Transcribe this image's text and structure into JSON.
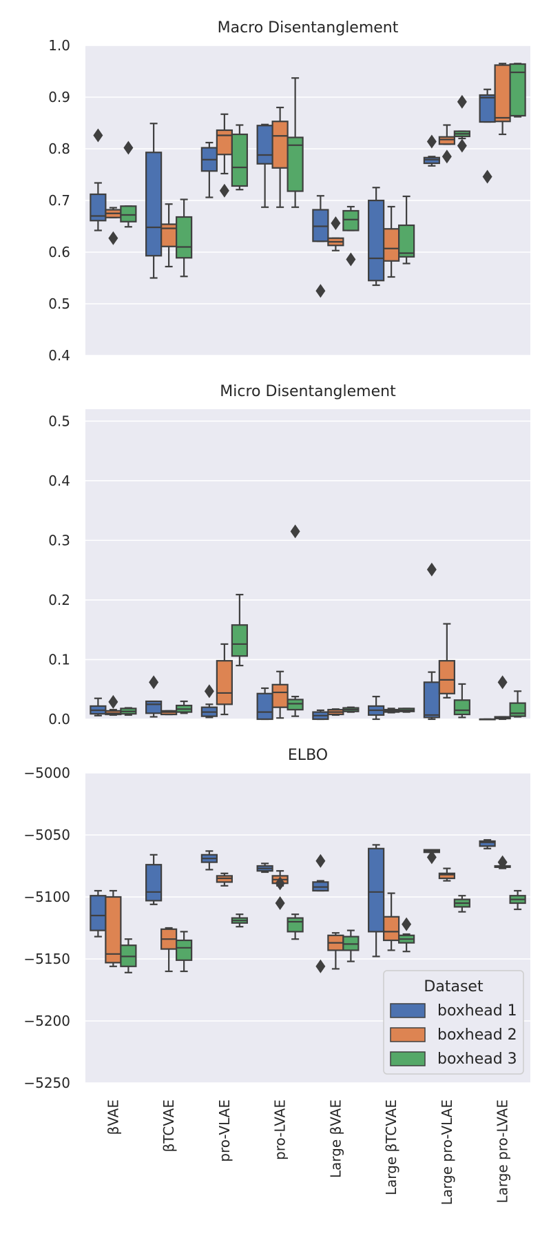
{
  "colors": {
    "boxhead 1": "#4c72b0",
    "boxhead 2": "#dd8452",
    "boxhead 3": "#55a868"
  },
  "chart_data": {
    "type": "box",
    "categories": [
      "βVAE",
      "βTCVAE",
      "pro-VLAE",
      "pro-LVAE",
      "Large βVAE",
      "Large βTCVAE",
      "Large pro-VLAE",
      "Large pro-LVAE"
    ],
    "category_tick_labels": [
      "βVAE",
      "βTCVAE",
      "pro-VLAE",
      "pro-LVAE",
      "Large βVAE",
      "Large βTCVAE",
      "Large pro-VLAE",
      "Large pro-LVAE"
    ],
    "legend": {
      "title": "Dataset",
      "entries": [
        "boxhead 1",
        "boxhead 2",
        "boxhead 3"
      ],
      "location": "lower-right of ELBO panel"
    },
    "panels": [
      {
        "title": "Macro Disentanglement",
        "ylim": [
          0.4,
          1.0
        ],
        "yticks": [
          0.4,
          0.5,
          0.6,
          0.7,
          0.8,
          0.9,
          1.0
        ],
        "ytick_labels": [
          "0.4",
          "0.5",
          "0.6",
          "0.7",
          "0.8",
          "0.9",
          "1.0"
        ],
        "series": [
          {
            "name": "boxhead 1",
            "boxes": [
              {
                "min": 0.642,
                "q1": 0.661,
                "med": 0.67,
                "q3": 0.712,
                "max": 0.734,
                "outliers": [
                  0.826
                ]
              },
              {
                "min": 0.55,
                "q1": 0.593,
                "med": 0.648,
                "q3": 0.793,
                "max": 0.849,
                "outliers": []
              },
              {
                "min": 0.706,
                "q1": 0.757,
                "med": 0.779,
                "q3": 0.802,
                "max": 0.812,
                "outliers": []
              },
              {
                "min": 0.687,
                "q1": 0.771,
                "med": 0.788,
                "q3": 0.845,
                "max": 0.847,
                "outliers": []
              },
              {
                "min": 0.621,
                "q1": 0.621,
                "med": 0.65,
                "q3": 0.682,
                "max": 0.709,
                "outliers": [
                  0.525
                ]
              },
              {
                "min": 0.536,
                "q1": 0.545,
                "med": 0.588,
                "q3": 0.7,
                "max": 0.725,
                "outliers": []
              },
              {
                "min": 0.767,
                "q1": 0.772,
                "med": 0.779,
                "q3": 0.783,
                "max": 0.785,
                "outliers": [
                  0.814
                ]
              },
              {
                "min": 0.852,
                "q1": 0.852,
                "med": 0.899,
                "q3": 0.904,
                "max": 0.915,
                "outliers": [
                  0.746
                ]
              }
            ]
          },
          {
            "name": "boxhead 2",
            "boxes": [
              {
                "min": 0.667,
                "q1": 0.667,
                "med": 0.675,
                "q3": 0.682,
                "max": 0.686,
                "outliers": [
                  0.627
                ]
              },
              {
                "min": 0.572,
                "q1": 0.611,
                "med": 0.646,
                "q3": 0.654,
                "max": 0.693,
                "outliers": []
              },
              {
                "min": 0.752,
                "q1": 0.789,
                "med": 0.826,
                "q3": 0.836,
                "max": 0.867,
                "outliers": [
                  0.719
                ]
              },
              {
                "min": 0.687,
                "q1": 0.763,
                "med": 0.825,
                "q3": 0.853,
                "max": 0.88,
                "outliers": []
              },
              {
                "min": 0.603,
                "q1": 0.613,
                "med": 0.62,
                "q3": 0.627,
                "max": 0.627,
                "outliers": [
                  0.656
                ]
              },
              {
                "min": 0.552,
                "q1": 0.583,
                "med": 0.607,
                "q3": 0.645,
                "max": 0.688,
                "outliers": []
              },
              {
                "min": 0.809,
                "q1": 0.809,
                "med": 0.818,
                "q3": 0.823,
                "max": 0.846,
                "outliers": [
                  0.785
                ]
              },
              {
                "min": 0.828,
                "q1": 0.853,
                "med": 0.86,
                "q3": 0.962,
                "max": 0.965,
                "outliers": []
              }
            ]
          },
          {
            "name": "boxhead 3",
            "boxes": [
              {
                "min": 0.649,
                "q1": 0.659,
                "med": 0.672,
                "q3": 0.689,
                "max": 0.689,
                "outliers": [
                  0.802
                ]
              },
              {
                "min": 0.553,
                "q1": 0.589,
                "med": 0.61,
                "q3": 0.668,
                "max": 0.702,
                "outliers": []
              },
              {
                "min": 0.721,
                "q1": 0.728,
                "med": 0.764,
                "q3": 0.828,
                "max": 0.846,
                "outliers": []
              },
              {
                "min": 0.687,
                "q1": 0.718,
                "med": 0.807,
                "q3": 0.822,
                "max": 0.937,
                "outliers": []
              },
              {
                "min": 0.642,
                "q1": 0.642,
                "med": 0.663,
                "q3": 0.68,
                "max": 0.688,
                "outliers": [
                  0.586
                ]
              },
              {
                "min": 0.578,
                "q1": 0.591,
                "med": 0.598,
                "q3": 0.652,
                "max": 0.708,
                "outliers": []
              },
              {
                "min": 0.82,
                "q1": 0.824,
                "med": 0.829,
                "q3": 0.834,
                "max": 0.834,
                "outliers": [
                  0.891,
                  0.806
                ]
              },
              {
                "min": 0.862,
                "q1": 0.864,
                "med": 0.948,
                "q3": 0.964,
                "max": 0.965,
                "outliers": []
              }
            ]
          }
        ]
      },
      {
        "title": "Micro Disentanglement",
        "ylim": [
          0.0,
          0.52
        ],
        "yticks": [
          0.0,
          0.1,
          0.2,
          0.3,
          0.4,
          0.5
        ],
        "ytick_labels": [
          "0.0",
          "0.1",
          "0.2",
          "0.3",
          "0.4",
          "0.5"
        ],
        "series": [
          {
            "name": "boxhead 1",
            "boxes": [
              {
                "min": 0.006,
                "q1": 0.009,
                "med": 0.015,
                "q3": 0.022,
                "max": 0.035,
                "outliers": []
              },
              {
                "min": 0.004,
                "q1": 0.01,
                "med": 0.025,
                "q3": 0.03,
                "max": 0.03,
                "outliers": [
                  0.062
                ]
              },
              {
                "min": 0.003,
                "q1": 0.005,
                "med": 0.012,
                "q3": 0.02,
                "max": 0.025,
                "outliers": [
                  0.047
                ]
              },
              {
                "min": 0.0,
                "q1": 0.0,
                "med": 0.012,
                "q3": 0.043,
                "max": 0.052,
                "outliers": []
              },
              {
                "min": 0.0,
                "q1": 0.0,
                "med": 0.006,
                "q3": 0.012,
                "max": 0.015,
                "outliers": []
              },
              {
                "min": 0.0,
                "q1": 0.007,
                "med": 0.015,
                "q3": 0.022,
                "max": 0.038,
                "outliers": []
              },
              {
                "min": 0.0,
                "q1": 0.003,
                "med": 0.007,
                "q3": 0.062,
                "max": 0.079,
                "outliers": [
                  0.251
                ]
              },
              {
                "min": 0.0,
                "q1": 0.0,
                "med": 0.0,
                "q3": 0.0,
                "max": 0.0,
                "outliers": []
              }
            ]
          },
          {
            "name": "boxhead 2",
            "boxes": [
              {
                "min": 0.007,
                "q1": 0.008,
                "med": 0.01,
                "q3": 0.014,
                "max": 0.016,
                "outliers": [
                  0.029
                ]
              },
              {
                "min": 0.008,
                "q1": 0.008,
                "med": 0.012,
                "q3": 0.014,
                "max": 0.014,
                "outliers": []
              },
              {
                "min": 0.008,
                "q1": 0.025,
                "med": 0.044,
                "q3": 0.098,
                "max": 0.126,
                "outliers": []
              },
              {
                "min": 0.002,
                "q1": 0.02,
                "med": 0.045,
                "q3": 0.058,
                "max": 0.08,
                "outliers": []
              },
              {
                "min": 0.007,
                "q1": 0.008,
                "med": 0.012,
                "q3": 0.016,
                "max": 0.017,
                "outliers": []
              },
              {
                "min": 0.011,
                "q1": 0.012,
                "med": 0.014,
                "q3": 0.016,
                "max": 0.018,
                "outliers": []
              },
              {
                "min": 0.036,
                "q1": 0.043,
                "med": 0.066,
                "q3": 0.098,
                "max": 0.16,
                "outliers": []
              },
              {
                "min": 0.0,
                "q1": 0.001,
                "med": 0.002,
                "q3": 0.004,
                "max": 0.004,
                "outliers": [
                  0.062
                ]
              }
            ]
          },
          {
            "name": "boxhead 3",
            "boxes": [
              {
                "min": 0.007,
                "q1": 0.009,
                "med": 0.013,
                "q3": 0.018,
                "max": 0.019,
                "outliers": []
              },
              {
                "min": 0.01,
                "q1": 0.012,
                "med": 0.017,
                "q3": 0.023,
                "max": 0.03,
                "outliers": []
              },
              {
                "min": 0.09,
                "q1": 0.106,
                "med": 0.126,
                "q3": 0.158,
                "max": 0.209,
                "outliers": []
              },
              {
                "min": 0.005,
                "q1": 0.016,
                "med": 0.026,
                "q3": 0.033,
                "max": 0.038,
                "outliers": [
                  0.315
                ]
              },
              {
                "min": 0.012,
                "q1": 0.013,
                "med": 0.016,
                "q3": 0.019,
                "max": 0.02,
                "outliers": []
              },
              {
                "min": 0.012,
                "q1": 0.013,
                "med": 0.015,
                "q3": 0.018,
                "max": 0.018,
                "outliers": []
              },
              {
                "min": 0.003,
                "q1": 0.008,
                "med": 0.015,
                "q3": 0.032,
                "max": 0.059,
                "outliers": []
              },
              {
                "min": 0.004,
                "q1": 0.005,
                "med": 0.01,
                "q3": 0.027,
                "max": 0.047,
                "outliers": []
              }
            ]
          }
        ]
      },
      {
        "title": "ELBO",
        "ylim": [
          -5250,
          -5000
        ],
        "yticks": [
          -5250,
          -5200,
          -5150,
          -5100,
          -5050,
          -5000
        ],
        "ytick_labels": [
          "−5250",
          "−5200",
          "−5150",
          "−5100",
          "−5050",
          "−5000"
        ],
        "series": [
          {
            "name": "boxhead 1",
            "boxes": [
              {
                "min": -5132,
                "q1": -5127,
                "med": -5115,
                "q3": -5099,
                "max": -5095,
                "outliers": []
              },
              {
                "min": -5106,
                "q1": -5103,
                "med": -5096,
                "q3": -5074,
                "max": -5066,
                "outliers": []
              },
              {
                "min": -5078,
                "q1": -5072,
                "med": -5069,
                "q3": -5066,
                "max": -5063,
                "outliers": []
              },
              {
                "min": -5080,
                "q1": -5079,
                "med": -5077,
                "q3": -5075,
                "max": -5073,
                "outliers": []
              },
              {
                "min": -5095,
                "q1": -5095,
                "med": -5092,
                "q3": -5088,
                "max": -5087,
                "outliers": [
                  -5071,
                  -5156
                ]
              },
              {
                "min": -5148,
                "q1": -5128,
                "med": -5096,
                "q3": -5061,
                "max": -5058,
                "outliers": []
              },
              {
                "min": -5064,
                "q1": -5064,
                "med": -5063,
                "q3": -5062,
                "max": -5062,
                "outliers": [
                  -5068
                ]
              },
              {
                "min": -5061,
                "q1": -5059,
                "med": -5056,
                "q3": -5055,
                "max": -5054,
                "outliers": []
              }
            ]
          },
          {
            "name": "boxhead 2",
            "boxes": [
              {
                "min": -5156,
                "q1": -5153,
                "med": -5146,
                "q3": -5100,
                "max": -5095,
                "outliers": []
              },
              {
                "min": -5160,
                "q1": -5142,
                "med": -5134,
                "q3": -5126,
                "max": -5125,
                "outliers": []
              },
              {
                "min": -5091,
                "q1": -5088,
                "med": -5085,
                "q3": -5083,
                "max": -5081,
                "outliers": []
              },
              {
                "min": -5091,
                "q1": -5089,
                "med": -5086,
                "q3": -5083,
                "max": -5079,
                "outliers": [
                  -5089,
                  -5105
                ]
              },
              {
                "min": -5158,
                "q1": -5143,
                "med": -5137,
                "q3": -5131,
                "max": -5129,
                "outliers": []
              },
              {
                "min": -5143,
                "q1": -5135,
                "med": -5128,
                "q3": -5116,
                "max": -5097,
                "outliers": []
              },
              {
                "min": -5087,
                "q1": -5085,
                "med": -5082,
                "q3": -5081,
                "max": -5077,
                "outliers": []
              },
              {
                "min": -5077,
                "q1": -5076,
                "med": -5076,
                "q3": -5075,
                "max": -5075,
                "outliers": [
                  -5072
                ]
              }
            ]
          },
          {
            "name": "boxhead 3",
            "boxes": [
              {
                "min": -5161,
                "q1": -5156,
                "med": -5148,
                "q3": -5139,
                "max": -5134,
                "outliers": []
              },
              {
                "min": -5160,
                "q1": -5151,
                "med": -5141,
                "q3": -5135,
                "max": -5128,
                "outliers": []
              },
              {
                "min": -5124,
                "q1": -5121,
                "med": -5119,
                "q3": -5117,
                "max": -5114,
                "outliers": []
              },
              {
                "min": -5134,
                "q1": -5128,
                "med": -5120,
                "q3": -5117,
                "max": -5114,
                "outliers": []
              },
              {
                "min": -5152,
                "q1": -5143,
                "med": -5138,
                "q3": -5132,
                "max": -5127,
                "outliers": []
              },
              {
                "min": -5144,
                "q1": -5137,
                "med": -5134,
                "q3": -5131,
                "max": -5130,
                "outliers": [
                  -5122
                ]
              },
              {
                "min": -5112,
                "q1": -5108,
                "med": -5105,
                "q3": -5102,
                "max": -5099,
                "outliers": []
              },
              {
                "min": -5110,
                "q1": -5105,
                "med": -5102,
                "q3": -5099,
                "max": -5095,
                "outliers": []
              }
            ]
          }
        ]
      }
    ]
  }
}
